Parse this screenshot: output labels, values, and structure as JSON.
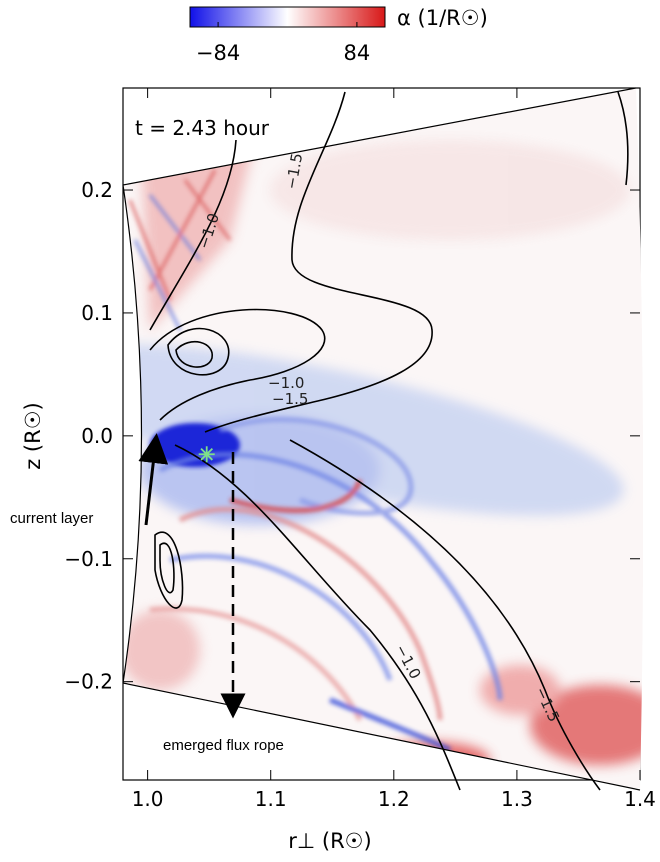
{
  "chart_data": {
    "type": "heatmap",
    "colorbar": {
      "label": "α (1/R☉)",
      "clim": [
        -118,
        118
      ],
      "ticks": [
        {
          "value": -84,
          "label": "−84"
        },
        84
      ],
      "colors": [
        "#1010e8",
        "#ffffff",
        "#d81818"
      ]
    },
    "annotation": "t = 2.43 hour",
    "xlabel": "r⊥ (R☉)",
    "ylabel": "z (R☉)",
    "xlim": [
      0.98,
      1.4
    ],
    "ylim": [
      -0.28,
      0.283
    ],
    "xticks": [
      {
        "value": 1,
        "label": "1.0"
      },
      1.1,
      1.2,
      1.3,
      1.4
    ],
    "yticks": [
      {
        "value": -0.2,
        "label": "−0.2"
      },
      {
        "value": -0.1,
        "label": "−0.1"
      },
      {
        "value": 0,
        "label": "0.0"
      },
      0.1,
      0.2
    ],
    "marker": {
      "x": 1.048,
      "y": -0.015,
      "color": "#7ee08a"
    },
    "contour_labels": [
      "−1.0",
      "−1.5",
      "−1.0",
      "−1.5",
      "−1.0",
      "−1.5"
    ],
    "arrows": [
      "current layer",
      "emerged flux rope"
    ]
  }
}
